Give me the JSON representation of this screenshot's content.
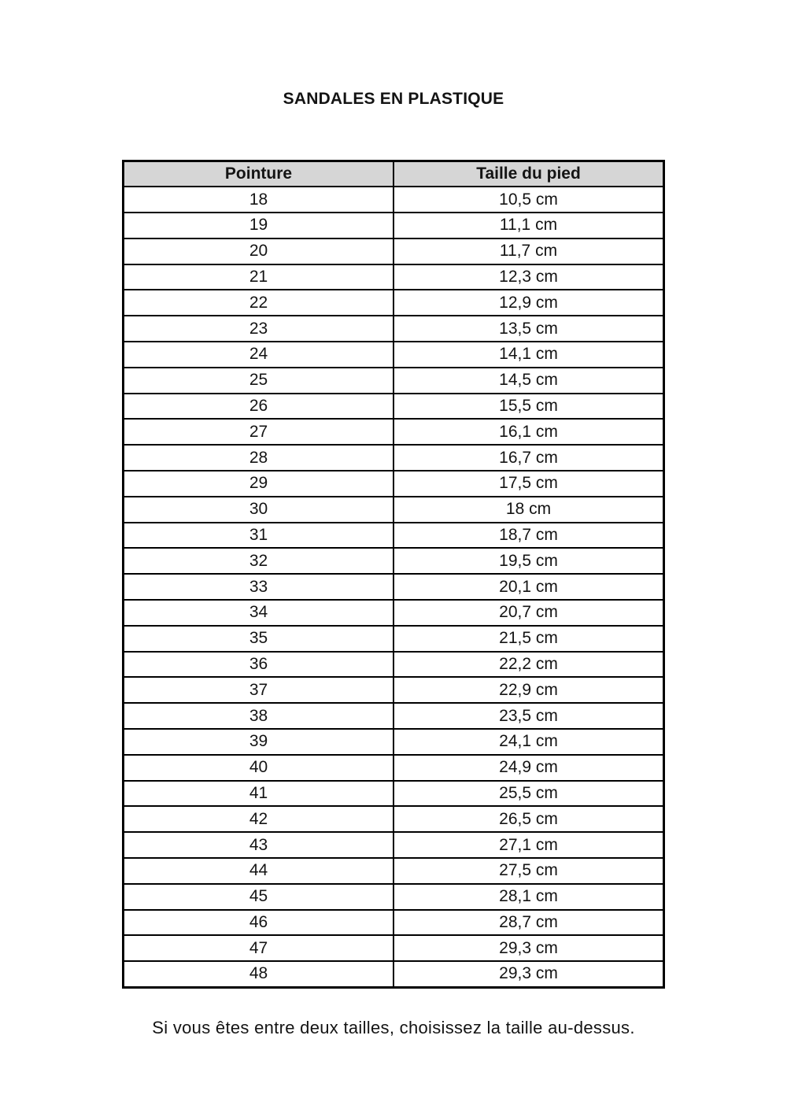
{
  "page": {
    "title": "SANDALES EN PLASTIQUE",
    "footer_note": "Si vous êtes entre deux tailles, choisissez la taille au-dessus."
  },
  "table": {
    "headers": [
      "Pointure",
      "Taille du pied"
    ],
    "rows": [
      [
        "18",
        "10,5 cm"
      ],
      [
        "19",
        "11,1 cm"
      ],
      [
        "20",
        "11,7 cm"
      ],
      [
        "21",
        "12,3 cm"
      ],
      [
        "22",
        "12,9 cm"
      ],
      [
        "23",
        "13,5 cm"
      ],
      [
        "24",
        "14,1 cm"
      ],
      [
        "25",
        "14,5 cm"
      ],
      [
        "26",
        "15,5 cm"
      ],
      [
        "27",
        "16,1 cm"
      ],
      [
        "28",
        "16,7 cm"
      ],
      [
        "29",
        "17,5 cm"
      ],
      [
        "30",
        "18 cm"
      ],
      [
        "31",
        "18,7 cm"
      ],
      [
        "32",
        "19,5 cm"
      ],
      [
        "33",
        "20,1 cm"
      ],
      [
        "34",
        "20,7 cm"
      ],
      [
        "35",
        "21,5 cm"
      ],
      [
        "36",
        "22,2 cm"
      ],
      [
        "37",
        "22,9 cm"
      ],
      [
        "38",
        "23,5 cm"
      ],
      [
        "39",
        "24,1 cm"
      ],
      [
        "40",
        "24,9 cm"
      ],
      [
        "41",
        "25,5 cm"
      ],
      [
        "42",
        "26,5 cm"
      ],
      [
        "43",
        "27,1 cm"
      ],
      [
        "44",
        "27,5 cm"
      ],
      [
        "45",
        "28,1 cm"
      ],
      [
        "46",
        "28,7 cm"
      ],
      [
        "47",
        "29,3 cm"
      ],
      [
        "48",
        "29,3 cm"
      ]
    ]
  },
  "colors": {
    "header_background": "#d6d6d6",
    "border": "#000000",
    "text": "#141414"
  }
}
